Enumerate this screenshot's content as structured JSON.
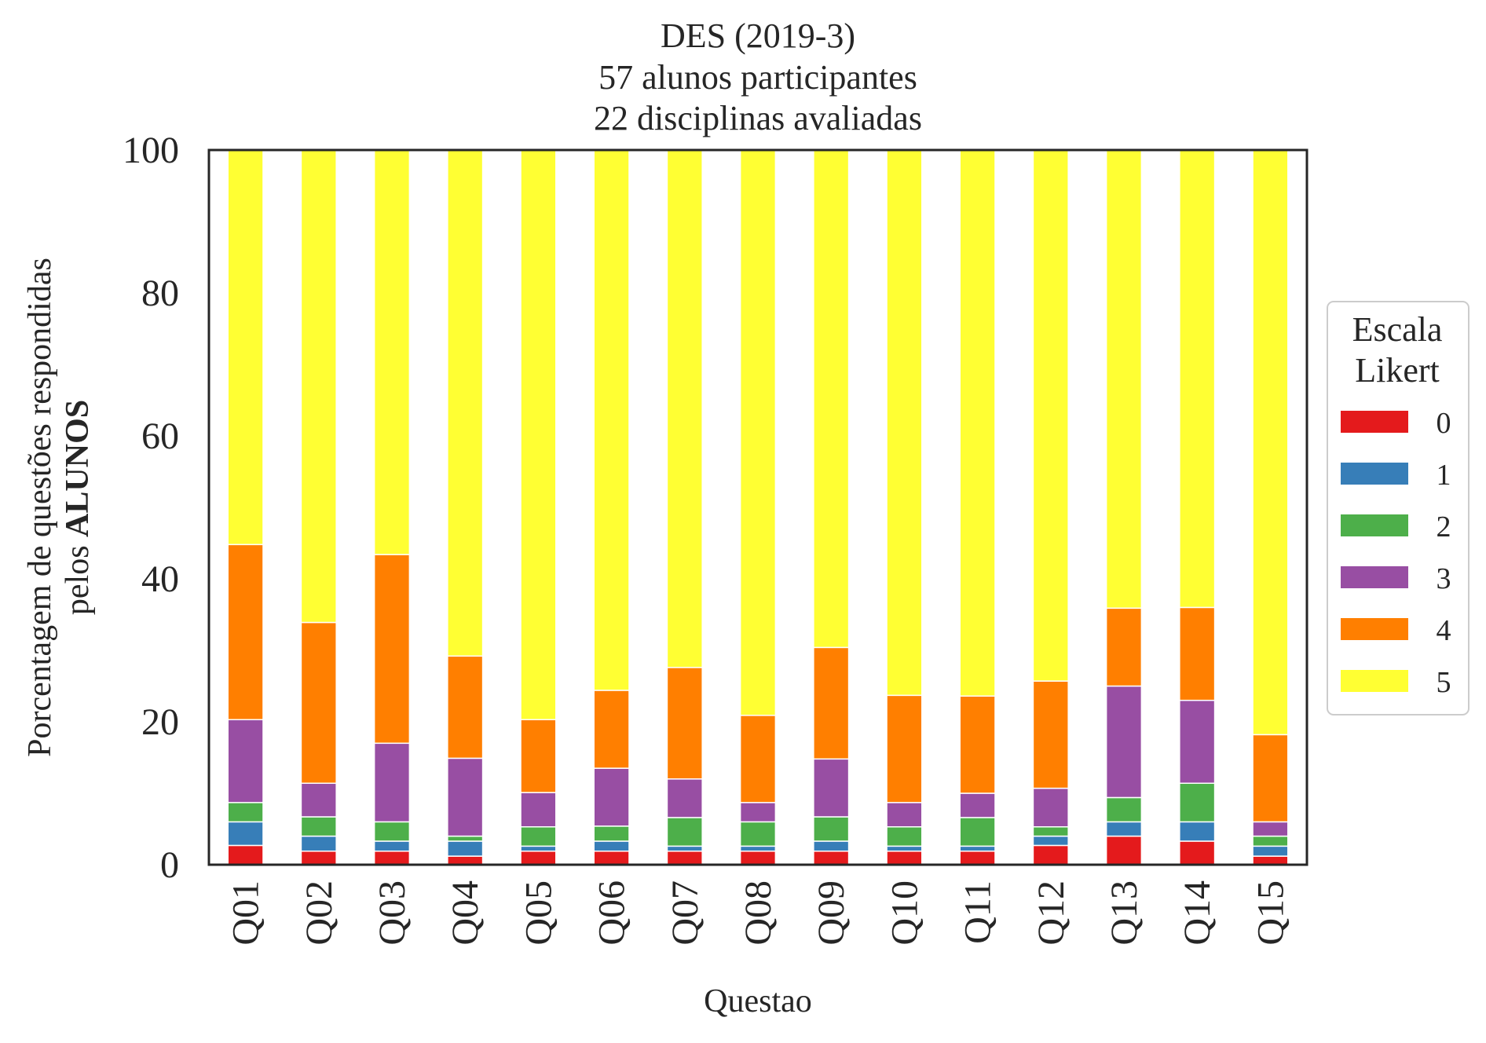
{
  "chart_data": {
    "type": "bar",
    "stacked": true,
    "title_lines": [
      "DES (2019-3)",
      "57 alunos participantes",
      "22 disciplinas avaliadas"
    ],
    "xlabel": "Questao",
    "ylabel_line1": "Porcentagem de questões respondidas",
    "ylabel_line2_prefix": "pelos ",
    "ylabel_line2_bold": "ALUNOS",
    "ylim": [
      0,
      100
    ],
    "yticks": [
      0,
      20,
      40,
      60,
      80,
      100
    ],
    "grid": false,
    "legend": {
      "title_lines": [
        "Escala",
        "Likert"
      ],
      "placement": "center-right, outside plot"
    },
    "categories": [
      "Q01",
      "Q02",
      "Q03",
      "Q04",
      "Q05",
      "Q06",
      "Q07",
      "Q08",
      "Q09",
      "Q10",
      "Q11",
      "Q12",
      "Q13",
      "Q14",
      "Q15"
    ],
    "series": [
      {
        "name": "0",
        "color": "#e41a1c",
        "values": [
          2.7,
          1.9,
          1.9,
          1.2,
          1.9,
          1.9,
          1.9,
          1.9,
          1.9,
          1.9,
          1.9,
          2.7,
          4.0,
          3.3,
          1.2
        ]
      },
      {
        "name": "1",
        "color": "#377eb8",
        "values": [
          3.3,
          2.1,
          1.4,
          2.1,
          0.7,
          1.4,
          0.7,
          0.7,
          1.4,
          0.7,
          0.7,
          1.3,
          2.0,
          2.7,
          1.4
        ]
      },
      {
        "name": "2",
        "color": "#4daf4a",
        "values": [
          2.7,
          2.7,
          2.7,
          0.7,
          2.7,
          2.1,
          4.0,
          3.4,
          3.4,
          2.7,
          4.0,
          1.3,
          3.4,
          5.4,
          1.4
        ]
      },
      {
        "name": "3",
        "color": "#984ea3",
        "values": [
          11.6,
          4.7,
          11.0,
          10.9,
          4.8,
          8.1,
          5.4,
          2.7,
          8.1,
          3.4,
          3.4,
          5.4,
          15.6,
          11.6,
          2.0
        ]
      },
      {
        "name": "4",
        "color": "#ff7f00",
        "values": [
          24.5,
          22.5,
          26.4,
          14.3,
          10.2,
          10.9,
          15.6,
          12.2,
          15.6,
          15.0,
          13.6,
          15.0,
          10.9,
          13.0,
          12.2
        ]
      },
      {
        "name": "5",
        "color": "#ffff33",
        "values": [
          55.2,
          66.1,
          56.6,
          70.8,
          79.7,
          75.6,
          72.4,
          79.1,
          69.6,
          76.3,
          76.4,
          74.3,
          64.1,
          64.0,
          81.8
        ]
      }
    ]
  }
}
